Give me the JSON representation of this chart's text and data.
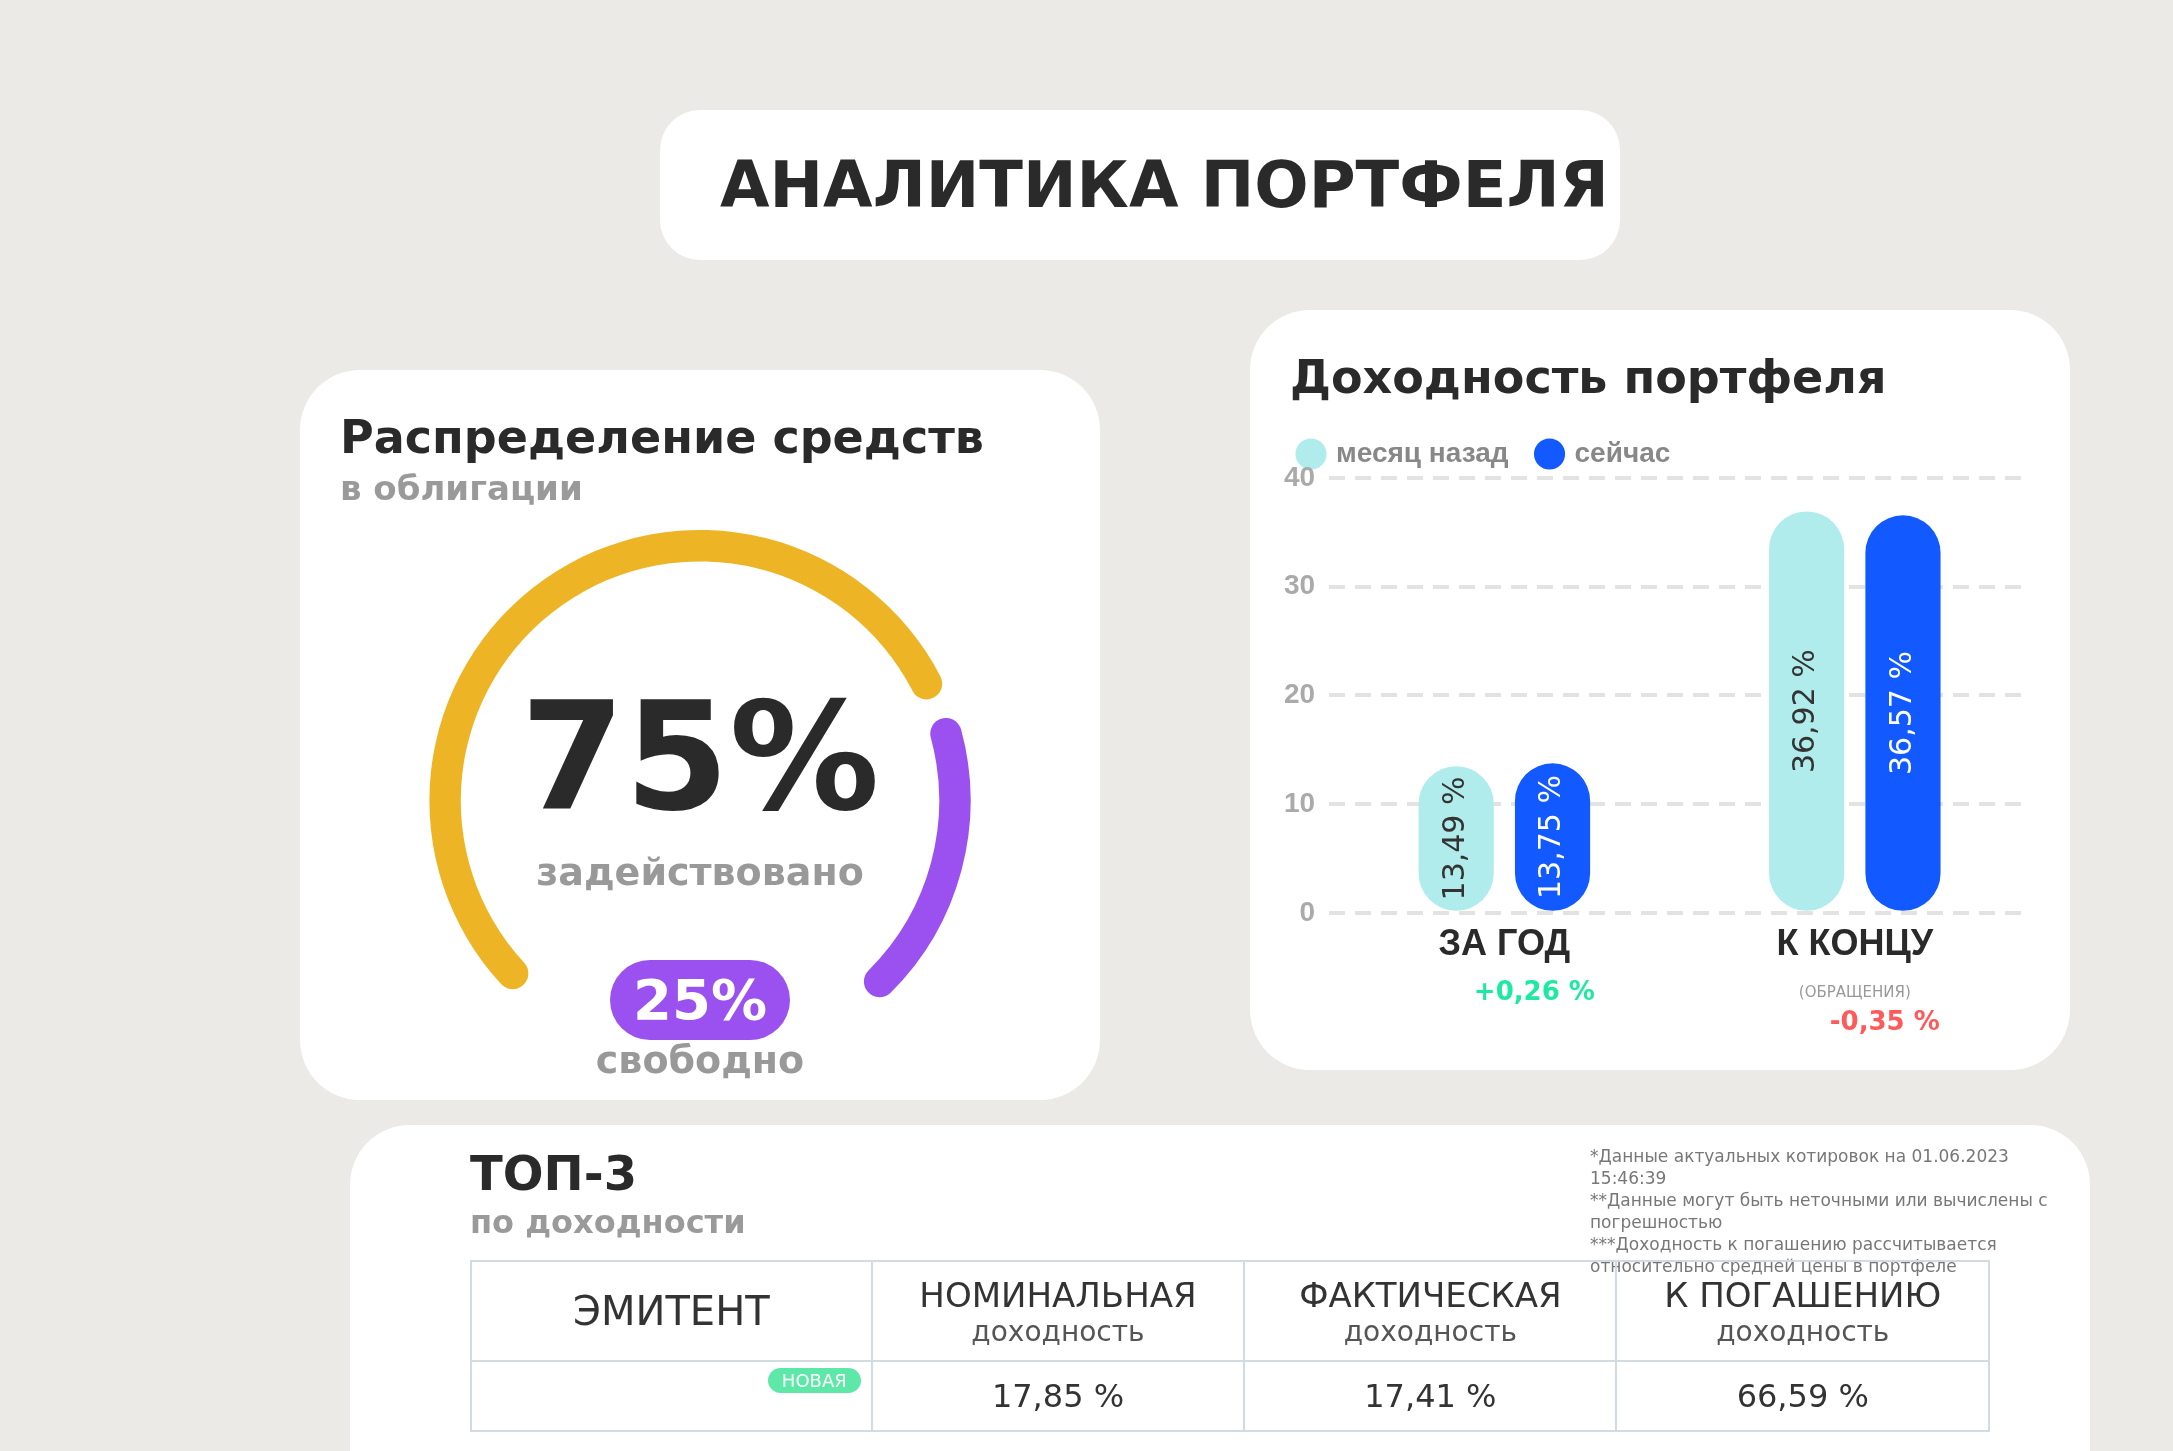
{
  "chart_data": [
    {
      "type": "other",
      "title": "АНАЛИТИКА ПОРТФЕЛЯ"
    },
    {
      "type": "donut",
      "title": "Распределение средств",
      "subtitle": "в облигации",
      "categories": [
        "задействовано",
        "свободно"
      ],
      "values": [
        75,
        25
      ],
      "colors": [
        "#edb426",
        "#9b51f0"
      ],
      "value_labels": [
        "75%",
        "25%"
      ]
    },
    {
      "type": "bar",
      "title": "Доходность портфеля",
      "categories": [
        "ЗА ГОД",
        "К КОНЦУ"
      ],
      "series": [
        {
          "name": "месяц назад",
          "color": "#b0ecec",
          "values": [
            13.49,
            36.92
          ],
          "value_labels": [
            "13,49 %",
            "36,92 %"
          ]
        },
        {
          "name": "сейчас",
          "color": "#1259ff",
          "values": [
            13.75,
            36.57
          ],
          "value_labels": [
            "13,75 %",
            "36,57 %"
          ]
        }
      ],
      "ylim": [
        0,
        40
      ],
      "yticks": [
        0,
        10,
        20,
        30,
        40
      ],
      "grid": "y",
      "legend": "top left",
      "annotations": [
        "+0,26 %",
        "(ОБРАЩЕНИЯ)",
        "-0,35 %"
      ]
    },
    {
      "type": "other",
      "title": "ТОП-3",
      "subtitle": "по доходности",
      "categories": [
        "ЭМИТЕНТ",
        "НОМИНАЛЬНАЯ доходность",
        "ФАКТИЧЕСКАЯ доходность",
        "К ПОГАШЕНИЮ доходность"
      ],
      "cell_labels": [
        [
          null,
          "17,85 %",
          "17,41 %",
          "66,59 %"
        ]
      ],
      "annotations": [
        "НОВАЯ",
        "*Данные актуальных котировок на 01.06.2023 15:46:39",
        "**Данные могут быть неточными или вычислены с погрешностью",
        "***Доходность к погашению рассчитывается относительно средней цены в портфеле"
      ]
    }
  ]
}
